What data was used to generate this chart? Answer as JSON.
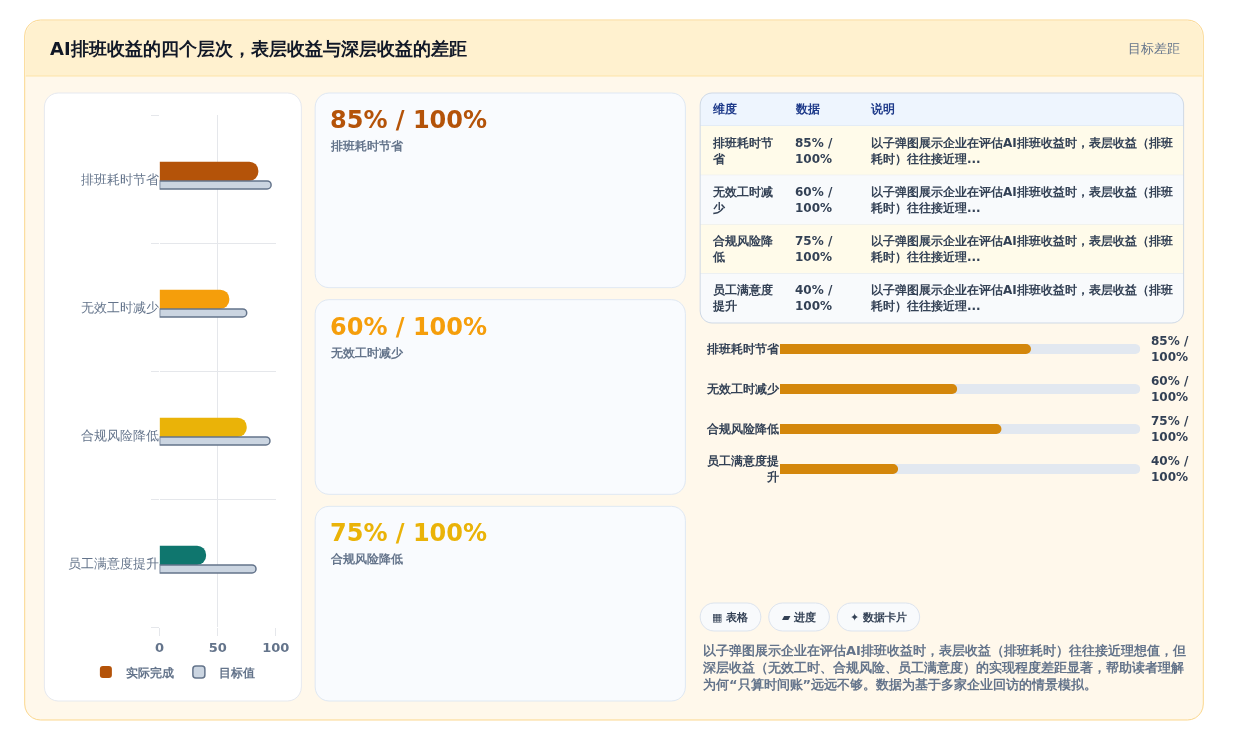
{
  "chart_data": [
    {
      "type": "bar",
      "title": "AI排班收益的四个层次，表层收益与深层收益的差距",
      "annotations": [
        "目标差距"
      ],
      "orientation": "horizontal",
      "categories": [
        "排班耗时节省",
        "无效工时减少",
        "合规风险降低",
        "员工满意度提升"
      ],
      "series": [
        {
          "name": "实际完成",
          "colors": [
            "#b45309",
            "#f59e0b",
            "#eab308",
            "#0f766e"
          ],
          "values": [
            85,
            60,
            75,
            40
          ]
        },
        {
          "name": "目标值",
          "color": "#cbd5e1",
          "values": [
            96,
            75,
            95,
            83
          ]
        }
      ],
      "xlim": [
        0,
        100
      ],
      "xticks": [
        0,
        50,
        100
      ],
      "grid": true,
      "legend": "bottom"
    },
    {
      "type": "other",
      "categories": [
        "排班耗时节省",
        "无效工时减少",
        "合规风险降低"
      ],
      "value_labels": [
        "85% / 100%",
        "60% / 100%",
        "75% / 100%"
      ]
    },
    {
      "type": "other",
      "categories": [
        "维度",
        "数据",
        "说明"
      ],
      "y_categories": [
        "排班耗时节省",
        "无效工时减少",
        "合规风险降低",
        "员工满意度提升"
      ],
      "cell_labels": [
        [
          "85% / 100%",
          "以子弹图展示企业在评估AI排班收益时，表层收益（排班耗时）往往接近理..."
        ],
        [
          "60% / 100%",
          "以子弹图展示企业在评估AI排班收益时，表层收益（排班耗时）往往接近理..."
        ],
        [
          "75% / 100%",
          "以子弹图展示企业在评估AI排班收益时，表层收益（排班耗时）往往接近理..."
        ],
        [
          "40% / 100%",
          "以子弹图展示企业在评估AI排班收益时，表层收益（排班耗时）往往接近理..."
        ]
      ]
    },
    {
      "type": "bar",
      "orientation": "horizontal",
      "categories": [
        "排班耗时节省",
        "无效工时减少",
        "合规风险降低",
        "员工满意度提升"
      ],
      "values": [
        85,
        60,
        75,
        40
      ],
      "color": "#d4870b",
      "value_labels": [
        "85% / 100%",
        "60% / 100%",
        "75% / 100%",
        "40% / 100%"
      ],
      "xlim": [
        0,
        122
      ],
      "tick_labels": "y"
    },
    {
      "type": "other",
      "categories": [
        "▦ 表格",
        "▰ 进度",
        "✦ 数据卡片"
      ],
      "annotations": [
        "以子弹图展示企业在评估AI排班收益时，表层收益（排班耗时）往往接近理想值，但深层收益（无效工时、合规风险、员工满意度）的实现程度差距显著，帮助读者理解为何“只算时间账”远远不够。数据为基于多家企业回访的情景模拟。"
      ]
    }
  ]
}
